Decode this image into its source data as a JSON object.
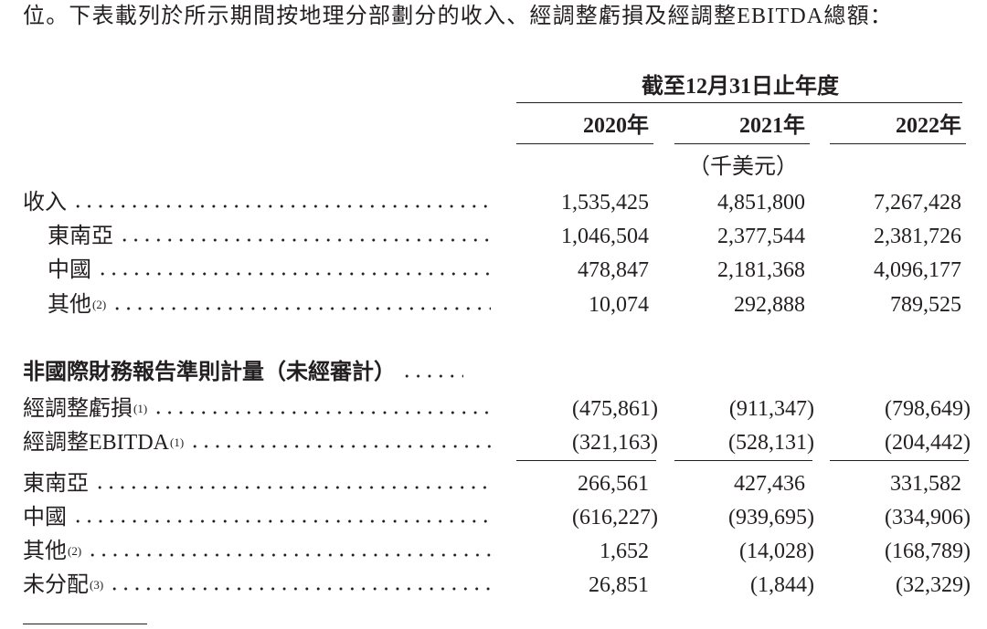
{
  "intro": "位。下表載列於所示期間按地理分部劃分的收入、經調整虧損及經調整EBITDA總額：",
  "table": {
    "period_header": "截至12月31日止年度",
    "years": [
      "2020年",
      "2021年",
      "2022年"
    ],
    "unit": "（千美元）",
    "revenue": {
      "label": "收入",
      "values": [
        "1,535,425",
        "4,851,800",
        "7,267,428"
      ],
      "breakdown": [
        {
          "label": "東南亞",
          "values": [
            "1,046,504",
            "2,377,544",
            "2,381,726"
          ]
        },
        {
          "label": "中國",
          "values": [
            "478,847",
            "2,181,368",
            "4,096,177"
          ]
        },
        {
          "label": "其他",
          "note": "(2)",
          "values": [
            "10,074",
            "292,888",
            "789,525"
          ]
        }
      ]
    },
    "non_ifrs": {
      "heading": "非國際財務報告準則計量（未經審計）",
      "rows": [
        {
          "label": "經調整虧損",
          "note": "(1)",
          "values": [
            "(475,861)",
            "(911,347)",
            "(798,649)"
          ]
        },
        {
          "label": "經調整EBITDA",
          "note": "(1)",
          "values": [
            "(321,163)",
            "(528,131)",
            "(204,442)"
          ]
        }
      ],
      "ebitda_breakdown": [
        {
          "label": "東南亞",
          "values": [
            "266,561",
            "427,436",
            "331,582"
          ]
        },
        {
          "label": "中國",
          "values": [
            "(616,227)",
            "(939,695)",
            "(334,906)"
          ]
        },
        {
          "label": "其他",
          "note": "(2)",
          "values": [
            "1,652",
            "(14,028)",
            "(168,789)"
          ]
        },
        {
          "label": "未分配",
          "note": "(3)",
          "values": [
            "26,851",
            "(1,844)",
            "(32,329)"
          ]
        }
      ]
    }
  }
}
